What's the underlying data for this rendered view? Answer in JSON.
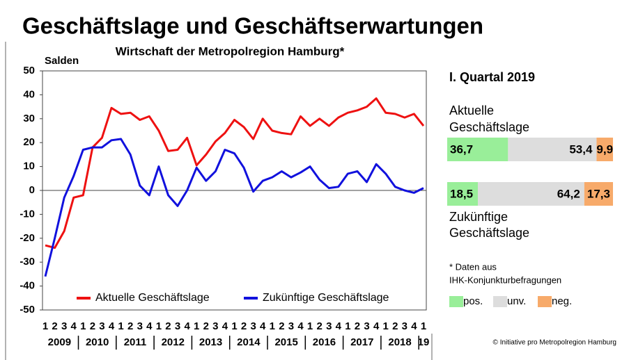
{
  "chart_data": [
    {
      "type": "line",
      "title": "Geschäftslage und Geschäftserwartungen",
      "subtitle": "Wirtschaft der Metropolregion Hamburg*",
      "y_label": "Salden",
      "categories": [
        "1",
        "2",
        "3",
        "4",
        "1",
        "2",
        "3",
        "4",
        "1",
        "2",
        "3",
        "4",
        "1",
        "2",
        "3",
        "4",
        "1",
        "2",
        "3",
        "4",
        "1",
        "2",
        "3",
        "4",
        "1",
        "2",
        "3",
        "4",
        "1",
        "2",
        "3",
        "4",
        "1",
        "2",
        "3",
        "4",
        "1",
        "2",
        "3",
        "4",
        "1"
      ],
      "years": [
        "2009",
        "2010",
        "2011",
        "2012",
        "2013",
        "2014",
        "2015",
        "2016",
        "2017",
        "2018",
        "19"
      ],
      "ylim": [
        -50,
        50
      ],
      "yticks": [
        -50,
        -40,
        -30,
        -20,
        -10,
        0,
        10,
        20,
        30,
        40,
        50
      ],
      "grid": false,
      "series": [
        {
          "name": "Aktuelle Geschäftslage",
          "color": "#ee1111",
          "values": [
            -23,
            -24,
            -17,
            -3,
            -2,
            18,
            22,
            34.5,
            32,
            32.5,
            29.5,
            31,
            25,
            16.5,
            17,
            22,
            10.5,
            15,
            20.5,
            24,
            29.5,
            26.5,
            21.5,
            30,
            25,
            24,
            23.5,
            31,
            27,
            30,
            27,
            30.5,
            32.5,
            33.5,
            35,
            38.5,
            32.5,
            32,
            30.5,
            32,
            27
          ]
        },
        {
          "name": "Zukünftige Geschäftslage",
          "color": "#1111dd",
          "values": [
            -36,
            -20,
            -3,
            6,
            17,
            18,
            18,
            21,
            21.5,
            15,
            2,
            -2,
            10,
            -2,
            -6.5,
            0,
            9.5,
            4,
            8,
            17,
            15.5,
            9.5,
            -0.5,
            4,
            5.5,
            8,
            5.5,
            7.5,
            10,
            4.5,
            1,
            1.5,
            7,
            8,
            3.5,
            11,
            7,
            1.5,
            0,
            -1,
            1
          ]
        }
      ]
    },
    {
      "type": "stacked_hbar",
      "title": "I. Quartal 2019",
      "categories": [
        [
          "Aktuelle",
          "Geschäftslage"
        ],
        [
          "Zukünftige",
          "Geschäftslage"
        ]
      ],
      "series": [
        {
          "name": "pos.",
          "color": "#99ee99",
          "values": [
            36.7,
            18.5
          ],
          "value_labels": [
            "36,7",
            "18,5"
          ]
        },
        {
          "name": "unv.",
          "color": "#dddddd",
          "values": [
            53.4,
            64.2
          ],
          "value_labels": [
            "53,4",
            "64,2"
          ]
        },
        {
          "name": "neg.",
          "color": "#f7aa6a",
          "values": [
            9.9,
            17.3
          ],
          "value_labels": [
            "9,9",
            "17,3"
          ]
        }
      ],
      "note": [
        "* Daten aus",
        "IHK-Konjunkturbefragungen"
      ],
      "credit": "© Initiative pro Metropolregion Hamburg"
    }
  ]
}
